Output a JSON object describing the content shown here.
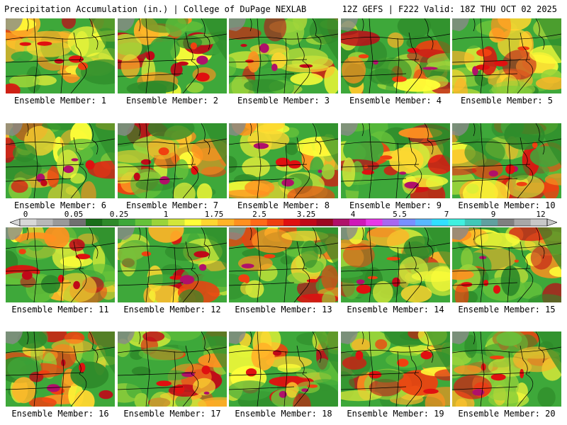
{
  "header": {
    "left": "Precipitation Accumulation (in.) | College of DuPage NEXLAB",
    "right": "12Z GEFS | F222 Valid: 18Z THU OCT 02 2025"
  },
  "panels": [
    {
      "label": "Ensemble Member: 1"
    },
    {
      "label": "Ensemble Member: 2"
    },
    {
      "label": "Ensemble Member: 3"
    },
    {
      "label": "Ensemble Member: 4"
    },
    {
      "label": "Ensemble Member: 5"
    },
    {
      "label": "Ensemble Member: 6"
    },
    {
      "label": "Ensemble Member: 7"
    },
    {
      "label": "Ensemble Member: 8"
    },
    {
      "label": "Ensemble Member: 9"
    },
    {
      "label": "Ensemble Member: 10"
    },
    {
      "label": "Ensemble Member: 11"
    },
    {
      "label": "Ensemble Member: 12"
    },
    {
      "label": "Ensemble Member: 13"
    },
    {
      "label": "Ensemble Member: 14"
    },
    {
      "label": "Ensemble Member: 15"
    },
    {
      "label": "Ensemble Member: 16"
    },
    {
      "label": "Ensemble Member: 17"
    },
    {
      "label": "Ensemble Member: 18"
    },
    {
      "label": "Ensemble Member: 19"
    },
    {
      "label": "Ensemble Member: 20"
    }
  ],
  "legend": {
    "ticks": [
      "0",
      "0.05",
      "0.25",
      "1",
      "1.75",
      "2.5",
      "3.25",
      "4",
      "5.5",
      "7",
      "9",
      "12"
    ],
    "colors": [
      "#d8d8d8",
      "#b8b8b8",
      "#9a9a9a",
      "#707070",
      "#1a6e1a",
      "#2e8a2a",
      "#3ea83a",
      "#66c23a",
      "#9ad43a",
      "#d2e63a",
      "#ffff38",
      "#ffd630",
      "#ffb428",
      "#ff9020",
      "#ff6a18",
      "#f04010",
      "#e01010",
      "#c00818",
      "#9c0820",
      "#b0106a",
      "#d018b8",
      "#e838e8",
      "#a868f0",
      "#7890ff",
      "#58b8ff",
      "#30e0ff",
      "#40f0e0",
      "#40c8b8",
      "#60a0a0",
      "#808080",
      "#a8a8a8",
      "#c8c8c8"
    ]
  }
}
